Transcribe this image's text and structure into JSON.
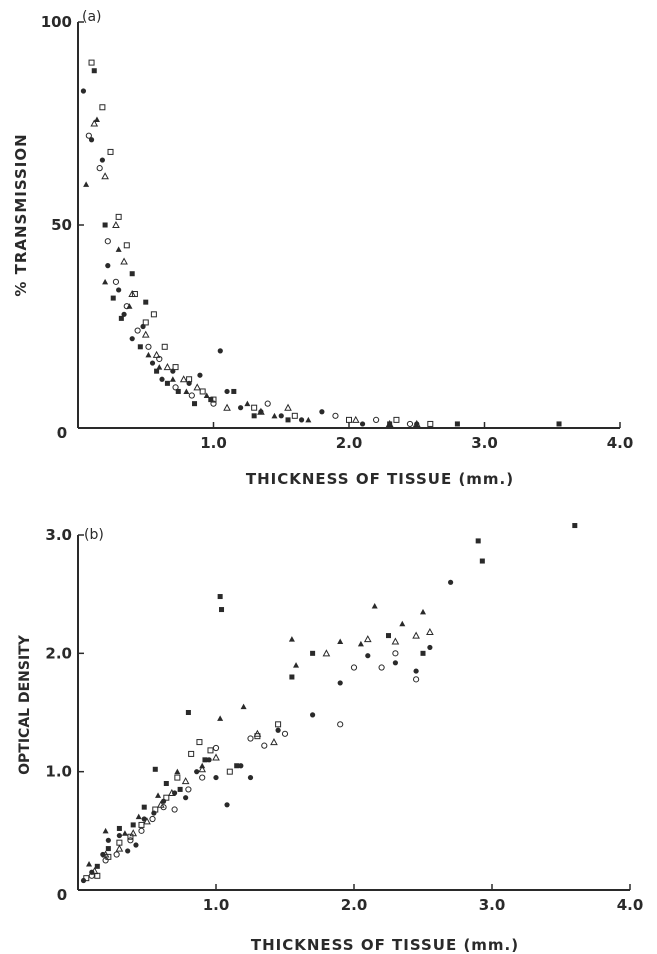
{
  "colors": {
    "ink": "#2a2a2a",
    "background": "#ffffff"
  },
  "chart_data": [
    {
      "type": "scatter",
      "panel_label": "(a)",
      "xlabel": "THICKNESS OF TISSUE (mm.)",
      "ylabel": "% TRANSMISSION",
      "xlim": [
        0,
        4.0
      ],
      "ylim": [
        0,
        100
      ],
      "x_ticks": [
        "1.0",
        "2.0",
        "3.0",
        "4.0"
      ],
      "y_ticks": [
        "0",
        "50",
        "100"
      ],
      "grid": false,
      "marker_styles": [
        "filled-circle",
        "filled-square",
        "filled-triangle",
        "open-circle",
        "open-square",
        "open-triangle"
      ],
      "series": [
        {
          "marker": "filled-circle",
          "points": [
            [
              0.04,
              83
            ],
            [
              0.1,
              71
            ],
            [
              0.18,
              66
            ],
            [
              0.22,
              40
            ],
            [
              0.3,
              34
            ],
            [
              0.34,
              28
            ],
            [
              0.4,
              22
            ],
            [
              0.48,
              25
            ],
            [
              0.55,
              16
            ],
            [
              0.62,
              12
            ],
            [
              0.7,
              14
            ],
            [
              0.82,
              11
            ],
            [
              0.9,
              13
            ],
            [
              1.05,
              19
            ],
            [
              1.1,
              9
            ],
            [
              1.2,
              5
            ],
            [
              1.35,
              4
            ],
            [
              1.5,
              3
            ],
            [
              1.65,
              2
            ],
            [
              1.8,
              4
            ],
            [
              2.1,
              1
            ],
            [
              2.5,
              1
            ]
          ]
        },
        {
          "marker": "filled-square",
          "points": [
            [
              0.12,
              88
            ],
            [
              0.2,
              50
            ],
            [
              0.26,
              32
            ],
            [
              0.32,
              27
            ],
            [
              0.4,
              38
            ],
            [
              0.46,
              20
            ],
            [
              0.5,
              31
            ],
            [
              0.58,
              14
            ],
            [
              0.66,
              11
            ],
            [
              0.74,
              9
            ],
            [
              0.86,
              6
            ],
            [
              0.98,
              7
            ],
            [
              1.15,
              9
            ],
            [
              1.3,
              3
            ],
            [
              1.55,
              2
            ],
            [
              2.3,
              1
            ],
            [
              2.8,
              1
            ],
            [
              3.55,
              1
            ]
          ]
        },
        {
          "marker": "filled-triangle",
          "points": [
            [
              0.06,
              60
            ],
            [
              0.14,
              76
            ],
            [
              0.2,
              36
            ],
            [
              0.3,
              44
            ],
            [
              0.38,
              30
            ],
            [
              0.52,
              18
            ],
            [
              0.6,
              15
            ],
            [
              0.7,
              12
            ],
            [
              0.8,
              9
            ],
            [
              0.95,
              8
            ],
            [
              1.25,
              6
            ],
            [
              1.45,
              3
            ],
            [
              1.7,
              2
            ]
          ]
        },
        {
          "marker": "open-circle",
          "points": [
            [
              0.08,
              72
            ],
            [
              0.16,
              64
            ],
            [
              0.22,
              46
            ],
            [
              0.28,
              36
            ],
            [
              0.36,
              30
            ],
            [
              0.44,
              24
            ],
            [
              0.52,
              20
            ],
            [
              0.6,
              17
            ],
            [
              0.72,
              10
            ],
            [
              0.84,
              8
            ],
            [
              1.0,
              6
            ],
            [
              1.4,
              6
            ],
            [
              1.9,
              3
            ],
            [
              2.2,
              2
            ],
            [
              2.45,
              1
            ]
          ]
        },
        {
          "marker": "open-square",
          "points": [
            [
              0.1,
              90
            ],
            [
              0.18,
              79
            ],
            [
              0.24,
              68
            ],
            [
              0.3,
              52
            ],
            [
              0.36,
              45
            ],
            [
              0.42,
              33
            ],
            [
              0.5,
              26
            ],
            [
              0.56,
              28
            ],
            [
              0.64,
              20
            ],
            [
              0.72,
              15
            ],
            [
              0.82,
              12
            ],
            [
              0.92,
              9
            ],
            [
              1.0,
              7
            ],
            [
              1.3,
              5
            ],
            [
              1.6,
              3
            ],
            [
              2.0,
              2
            ],
            [
              2.35,
              2
            ],
            [
              2.6,
              1
            ]
          ]
        },
        {
          "marker": "open-triangle",
          "points": [
            [
              0.12,
              75
            ],
            [
              0.2,
              62
            ],
            [
              0.28,
              50
            ],
            [
              0.34,
              41
            ],
            [
              0.4,
              33
            ],
            [
              0.5,
              23
            ],
            [
              0.58,
              18
            ],
            [
              0.66,
              15
            ],
            [
              0.78,
              12
            ],
            [
              0.88,
              10
            ],
            [
              1.1,
              5
            ],
            [
              1.35,
              4
            ],
            [
              1.55,
              5
            ],
            [
              2.05,
              2
            ],
            [
              2.3,
              1
            ],
            [
              2.5,
              1
            ]
          ]
        }
      ]
    },
    {
      "type": "scatter",
      "panel_label": "(b)",
      "xlabel": "THICKNESS OF TISSUE (mm.)",
      "ylabel": "OPTICAL DENSITY",
      "xlim": [
        0,
        4.0
      ],
      "ylim": [
        0,
        3.0
      ],
      "x_ticks": [
        "1.0",
        "2.0",
        "3.0",
        "4.0"
      ],
      "y_ticks": [
        "0",
        "1.0",
        "2.0",
        "3.0"
      ],
      "grid": false,
      "marker_styles": [
        "filled-circle",
        "filled-square",
        "filled-triangle",
        "open-circle",
        "open-square",
        "open-triangle"
      ],
      "series": [
        {
          "marker": "filled-circle",
          "points": [
            [
              0.04,
              0.08
            ],
            [
              0.1,
              0.15
            ],
            [
              0.18,
              0.3
            ],
            [
              0.22,
              0.42
            ],
            [
              0.3,
              0.46
            ],
            [
              0.36,
              0.33
            ],
            [
              0.42,
              0.38
            ],
            [
              0.48,
              0.6
            ],
            [
              0.55,
              0.65
            ],
            [
              0.62,
              0.75
            ],
            [
              0.7,
              0.82
            ],
            [
              0.78,
              0.78
            ],
            [
              0.86,
              1.0
            ],
            [
              0.95,
              1.1
            ],
            [
              1.0,
              0.95
            ],
            [
              1.08,
              0.72
            ],
            [
              1.18,
              1.05
            ],
            [
              1.25,
              0.95
            ],
            [
              1.45,
              1.35
            ],
            [
              1.7,
              1.48
            ],
            [
              1.9,
              1.75
            ],
            [
              2.1,
              1.98
            ],
            [
              2.3,
              1.92
            ],
            [
              2.45,
              1.85
            ],
            [
              2.55,
              2.05
            ],
            [
              2.7,
              2.6
            ]
          ]
        },
        {
          "marker": "filled-square",
          "points": [
            [
              0.14,
              0.2
            ],
            [
              0.22,
              0.35
            ],
            [
              0.3,
              0.52
            ],
            [
              0.4,
              0.55
            ],
            [
              0.48,
              0.7
            ],
            [
              0.56,
              1.02
            ],
            [
              0.64,
              0.9
            ],
            [
              0.74,
              0.85
            ],
            [
              0.8,
              1.5
            ],
            [
              0.92,
              1.1
            ],
            [
              1.03,
              2.48
            ],
            [
              1.04,
              2.37
            ],
            [
              1.15,
              1.05
            ],
            [
              1.55,
              1.8
            ],
            [
              1.7,
              2.0
            ],
            [
              2.25,
              2.15
            ],
            [
              2.5,
              2.0
            ],
            [
              2.9,
              2.95
            ],
            [
              2.93,
              2.78
            ],
            [
              3.6,
              3.08
            ]
          ]
        },
        {
          "marker": "filled-triangle",
          "points": [
            [
              0.08,
              0.22
            ],
            [
              0.2,
              0.5
            ],
            [
              0.34,
              0.48
            ],
            [
              0.44,
              0.62
            ],
            [
              0.58,
              0.8
            ],
            [
              0.72,
              1.0
            ],
            [
              0.9,
              1.05
            ],
            [
              1.03,
              1.45
            ],
            [
              1.2,
              1.55
            ],
            [
              1.55,
              2.12
            ],
            [
              1.58,
              1.9
            ],
            [
              1.9,
              2.1
            ],
            [
              2.05,
              2.08
            ],
            [
              2.15,
              2.4
            ],
            [
              2.35,
              2.25
            ],
            [
              2.5,
              2.35
            ]
          ]
        },
        {
          "marker": "open-circle",
          "points": [
            [
              0.1,
              0.12
            ],
            [
              0.2,
              0.25
            ],
            [
              0.28,
              0.3
            ],
            [
              0.38,
              0.42
            ],
            [
              0.46,
              0.5
            ],
            [
              0.54,
              0.6
            ],
            [
              0.62,
              0.7
            ],
            [
              0.7,
              0.68
            ],
            [
              0.8,
              0.85
            ],
            [
              0.9,
              0.95
            ],
            [
              1.0,
              1.2
            ],
            [
              1.25,
              1.28
            ],
            [
              1.35,
              1.22
            ],
            [
              1.5,
              1.32
            ],
            [
              1.9,
              1.4
            ],
            [
              2.0,
              1.88
            ],
            [
              2.2,
              1.88
            ],
            [
              2.3,
              2.0
            ],
            [
              2.45,
              1.78
            ]
          ]
        },
        {
          "marker": "open-square",
          "points": [
            [
              0.06,
              0.1
            ],
            [
              0.14,
              0.12
            ],
            [
              0.22,
              0.28
            ],
            [
              0.3,
              0.4
            ],
            [
              0.38,
              0.45
            ],
            [
              0.46,
              0.55
            ],
            [
              0.56,
              0.68
            ],
            [
              0.64,
              0.78
            ],
            [
              0.72,
              0.95
            ],
            [
              0.82,
              1.15
            ],
            [
              0.88,
              1.25
            ],
            [
              0.96,
              1.18
            ],
            [
              1.1,
              1.0
            ],
            [
              1.3,
              1.3
            ],
            [
              1.45,
              1.4
            ]
          ]
        },
        {
          "marker": "open-triangle",
          "points": [
            [
              0.12,
              0.16
            ],
            [
              0.2,
              0.3
            ],
            [
              0.3,
              0.35
            ],
            [
              0.4,
              0.48
            ],
            [
              0.5,
              0.58
            ],
            [
              0.6,
              0.72
            ],
            [
              0.68,
              0.82
            ],
            [
              0.78,
              0.92
            ],
            [
              0.9,
              1.02
            ],
            [
              1.0,
              1.12
            ],
            [
              1.3,
              1.32
            ],
            [
              1.42,
              1.25
            ],
            [
              1.8,
              2.0
            ],
            [
              2.1,
              2.12
            ],
            [
              2.3,
              2.1
            ],
            [
              2.45,
              2.15
            ],
            [
              2.55,
              2.18
            ]
          ]
        }
      ]
    }
  ]
}
